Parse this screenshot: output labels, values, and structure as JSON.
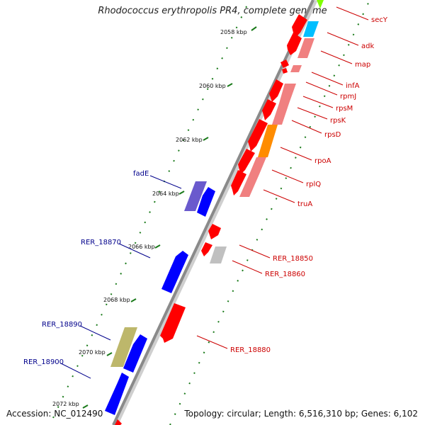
{
  "title": "Rhodococcus erythropolis PR4, complete genome",
  "footer": {
    "accession": "Accession: NC_012490",
    "topology": "Topology: circular; Length: 6,516,310 bp; Genes: 6,102"
  },
  "colors": {
    "forward_gene_label": "#cc0000",
    "reverse_gene_label": "#00008b",
    "backbone": "#8a8a8a",
    "tick": "#1a7a1a"
  },
  "ticks": [
    "2058 kbp",
    "2060 kbp",
    "2062 kbp",
    "2064 kbp",
    "2066 kbp",
    "2068 kbp",
    "2070 kbp",
    "2072 kbp"
  ],
  "genes_forward": [
    {
      "name": "secY",
      "color": "#ff0000"
    },
    {
      "name": "adk",
      "color": "#ff0000"
    },
    {
      "name": "map",
      "color": "#ff0000"
    },
    {
      "name": "infA",
      "color": "#ff0000"
    },
    {
      "name": "rpmJ",
      "color": "#ff0000"
    },
    {
      "name": "rpsM",
      "color": "#ff0000"
    },
    {
      "name": "rpsK",
      "color": "#ff0000"
    },
    {
      "name": "rpsD",
      "color": "#ff0000"
    },
    {
      "name": "rpoA",
      "color": "#ff0000"
    },
    {
      "name": "rplQ",
      "color": "#ff0000"
    },
    {
      "name": "truA",
      "color": "#ff0000"
    },
    {
      "name": "RER_18850",
      "color": "#ff0000"
    },
    {
      "name": "RER_18860",
      "color": "#ff0000"
    },
    {
      "name": "RER_18880",
      "color": "#ff0000"
    }
  ],
  "genes_reverse": [
    {
      "name": "fadE",
      "color": "#0000ff"
    },
    {
      "name": "RER_18870",
      "color": "#0000ff"
    },
    {
      "name": "RER_18890",
      "color": "#0000ff"
    },
    {
      "name": "RER_18900",
      "color": "#0000ff"
    }
  ],
  "cog_colors": {
    "translation": "#f08080",
    "transcription": "#ff8c00",
    "nucleotide": "#00bfff",
    "secretion": "#7fff00",
    "lipid": "#6a5acd",
    "unknown": "#bdb76b",
    "general": "#c0c0c0"
  }
}
